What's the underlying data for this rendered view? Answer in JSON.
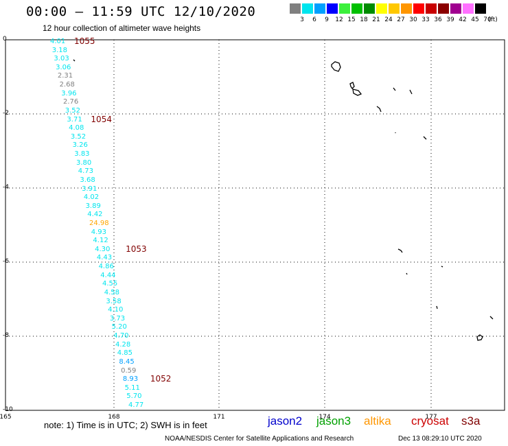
{
  "header": {
    "title": "00:00 – 11:59 UTC 12/10/2020",
    "subtitle": "12 hour collection of altimeter wave heights"
  },
  "color_scale": {
    "unit_label": "(ft)",
    "bins": [
      {
        "label": "3",
        "color": "#808080"
      },
      {
        "label": "6",
        "color": "#00e5ee"
      },
      {
        "label": "9",
        "color": "#00a0ff"
      },
      {
        "label": "12",
        "color": "#0000ff"
      },
      {
        "label": "15",
        "color": "#3cf03c"
      },
      {
        "label": "18",
        "color": "#00c000"
      },
      {
        "label": "21",
        "color": "#008c00"
      },
      {
        "label": "24",
        "color": "#ffff00"
      },
      {
        "label": "27",
        "color": "#ffc800"
      },
      {
        "label": "30",
        "color": "#ff9600"
      },
      {
        "label": "33",
        "color": "#ff0000"
      },
      {
        "label": "36",
        "color": "#c80000"
      },
      {
        "label": "39",
        "color": "#8b0000"
      },
      {
        "label": "42",
        "color": "#a00090"
      },
      {
        "label": "45",
        "color": "#ff70ff"
      },
      {
        "label": "70",
        "color": "#000000"
      }
    ]
  },
  "axes": {
    "y_labels": [
      "0",
      "-2",
      "-4",
      "-6",
      "-8",
      "-10"
    ],
    "x_labels": [
      "165",
      "168",
      "171",
      "174",
      "177"
    ]
  },
  "observations": [
    {
      "value": "4.01",
      "color": "#00e5ee"
    },
    {
      "value": "3.18",
      "color": "#00e5ee"
    },
    {
      "value": "3.03",
      "color": "#00e5ee"
    },
    {
      "value": "3.06",
      "color": "#00e5ee"
    },
    {
      "value": "2.31",
      "color": "#808080"
    },
    {
      "value": "2.68",
      "color": "#808080"
    },
    {
      "value": "3.96",
      "color": "#00e5ee"
    },
    {
      "value": "2.76",
      "color": "#808080"
    },
    {
      "value": "3.52",
      "color": "#00e5ee"
    },
    {
      "value": "3.71",
      "color": "#00e5ee"
    },
    {
      "value": "4.08",
      "color": "#00e5ee"
    },
    {
      "value": "3.52",
      "color": "#00e5ee"
    },
    {
      "value": "3.26",
      "color": "#00e5ee"
    },
    {
      "value": "3.83",
      "color": "#00e5ee"
    },
    {
      "value": "3.80",
      "color": "#00e5ee"
    },
    {
      "value": "4.73",
      "color": "#00e5ee"
    },
    {
      "value": "3.68",
      "color": "#00e5ee"
    },
    {
      "value": "3.91",
      "color": "#00e5ee"
    },
    {
      "value": "4.02",
      "color": "#00e5ee"
    },
    {
      "value": "3.89",
      "color": "#00e5ee"
    },
    {
      "value": "4.42",
      "color": "#00e5ee"
    },
    {
      "value": "24.98",
      "color": "#ffa500"
    },
    {
      "value": "4.93",
      "color": "#00e5ee"
    },
    {
      "value": "4.12",
      "color": "#00e5ee"
    },
    {
      "value": "4.30",
      "color": "#00e5ee"
    },
    {
      "value": "4.43",
      "color": "#00e5ee"
    },
    {
      "value": "4.86",
      "color": "#00e5ee"
    },
    {
      "value": "4.44",
      "color": "#00e5ee"
    },
    {
      "value": "4.55",
      "color": "#00e5ee"
    },
    {
      "value": "4.58",
      "color": "#00e5ee"
    },
    {
      "value": "3.58",
      "color": "#00e5ee"
    },
    {
      "value": "4.10",
      "color": "#00e5ee"
    },
    {
      "value": "3.73",
      "color": "#00e5ee"
    },
    {
      "value": "5.20",
      "color": "#00e5ee"
    },
    {
      "value": "4.70",
      "color": "#00e5ee"
    },
    {
      "value": "4.28",
      "color": "#00e5ee"
    },
    {
      "value": "4.85",
      "color": "#00e5ee"
    },
    {
      "value": "8.45",
      "color": "#00a0ff"
    },
    {
      "value": "0.59",
      "color": "#808080"
    },
    {
      "value": "8.93",
      "color": "#00a0ff"
    },
    {
      "value": "5.11",
      "color": "#00e5ee"
    },
    {
      "value": "5.70",
      "color": "#00e5ee"
    },
    {
      "value": "4.77",
      "color": "#00e5ee"
    }
  ],
  "orbit_times": [
    "1055",
    "1054",
    "1053",
    "1052"
  ],
  "footer": {
    "note": "note: 1) Time is in UTC; 2) SWH is in feet",
    "satellites": [
      {
        "name": "jason2",
        "color": "#0000cc"
      },
      {
        "name": "jason3",
        "color": "#00a000"
      },
      {
        "name": "altika",
        "color": "#ff9600"
      },
      {
        "name": "cryosat",
        "color": "#cc0000"
      },
      {
        "name": "s3a",
        "color": "#800000"
      }
    ],
    "credit": "NOAA/NESDIS Center for Satellite Applications and Research",
    "timestamp": "Dec 13 08:29:10 UTC 2020"
  }
}
